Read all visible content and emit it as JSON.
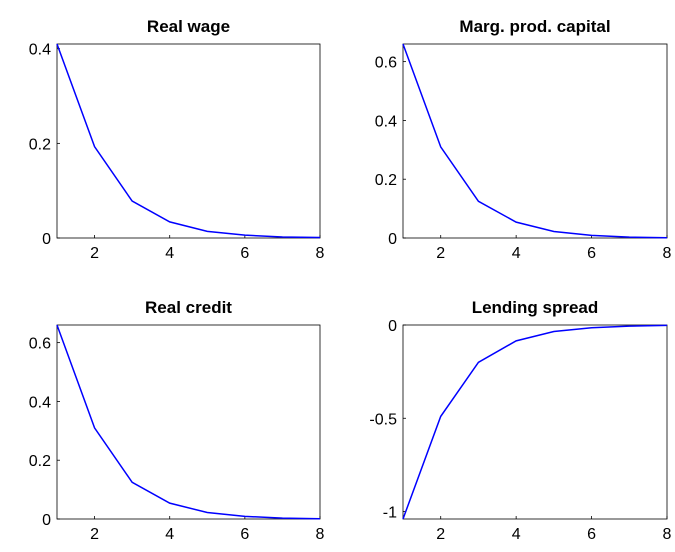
{
  "chart_data": [
    {
      "type": "line",
      "title": "Real wage",
      "x": [
        1,
        2,
        3,
        4,
        5,
        6,
        7,
        8
      ],
      "series": [
        {
          "color": "#0000ff",
          "values": [
            0.41,
            0.193,
            0.078,
            0.034,
            0.014,
            0.006,
            0.002,
            0.001
          ]
        }
      ],
      "xlim": [
        1,
        8
      ],
      "xticks": [
        2,
        4,
        6,
        8
      ],
      "ylim": [
        0,
        0.41
      ],
      "yticks": [
        0,
        0.2,
        0.4
      ]
    },
    {
      "type": "line",
      "title": "Marg. prod. capital",
      "x": [
        1,
        2,
        3,
        4,
        5,
        6,
        7,
        8
      ],
      "series": [
        {
          "color": "#0000ff",
          "values": [
            0.66,
            0.31,
            0.125,
            0.054,
            0.022,
            0.009,
            0.003,
            0.001
          ]
        }
      ],
      "xlim": [
        1,
        8
      ],
      "xticks": [
        2,
        4,
        6,
        8
      ],
      "ylim": [
        0,
        0.66
      ],
      "yticks": [
        0,
        0.2,
        0.4,
        0.6
      ]
    },
    {
      "type": "line",
      "title": "Real credit",
      "x": [
        1,
        2,
        3,
        4,
        5,
        6,
        7,
        8
      ],
      "series": [
        {
          "color": "#0000ff",
          "values": [
            0.66,
            0.31,
            0.125,
            0.054,
            0.022,
            0.009,
            0.003,
            0.001
          ]
        }
      ],
      "xlim": [
        1,
        8
      ],
      "xticks": [
        2,
        4,
        6,
        8
      ],
      "ylim": [
        0,
        0.66
      ],
      "yticks": [
        0,
        0.2,
        0.4,
        0.6
      ]
    },
    {
      "type": "line",
      "title": "Lending spread",
      "x": [
        1,
        2,
        3,
        4,
        5,
        6,
        7,
        8
      ],
      "series": [
        {
          "color": "#0000ff",
          "values": [
            -1.04,
            -0.49,
            -0.2,
            -0.085,
            -0.035,
            -0.015,
            -0.006,
            -0.002
          ]
        }
      ],
      "xlim": [
        1,
        8
      ],
      "xticks": [
        2,
        4,
        6,
        8
      ],
      "ylim": [
        -1.04,
        0
      ],
      "yticks": [
        -1,
        -0.5,
        0
      ]
    }
  ]
}
